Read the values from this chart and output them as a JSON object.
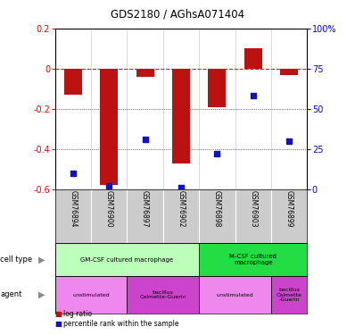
{
  "title": "GDS2180 / AGhsA071404",
  "samples": [
    "GSM76894",
    "GSM76900",
    "GSM76897",
    "GSM76902",
    "GSM76898",
    "GSM76903",
    "GSM76899"
  ],
  "log_ratio": [
    -0.13,
    -0.58,
    -0.04,
    -0.47,
    -0.19,
    0.1,
    -0.03
  ],
  "percentile": [
    10,
    2,
    31,
    1,
    22,
    58,
    30
  ],
  "ylim_left": [
    -0.6,
    0.2
  ],
  "ylim_right": [
    0,
    100
  ],
  "bar_color": "#bb1111",
  "dot_color": "#1111cc",
  "dashed_color": "#cc2222",
  "cell_type_groups": [
    {
      "label": "GM-CSF cultured macrophage",
      "start": 0,
      "end": 4,
      "color": "#bbffbb"
    },
    {
      "label": "M-CSF cultured\nmacrophage",
      "start": 4,
      "end": 7,
      "color": "#22dd44"
    }
  ],
  "agent_groups": [
    {
      "label": "unstimulated",
      "start": 0,
      "end": 2,
      "color": "#ee88ee"
    },
    {
      "label": "bacillus\nCalmette-Guerin",
      "start": 2,
      "end": 4,
      "color": "#cc44cc"
    },
    {
      "label": "unstimulated",
      "start": 4,
      "end": 6,
      "color": "#ee88ee"
    },
    {
      "label": "bacillus\nCalmette\n-Guerin",
      "start": 6,
      "end": 7,
      "color": "#cc44cc"
    }
  ],
  "legend_items": [
    {
      "label": "log ratio",
      "color": "#bb1111"
    },
    {
      "label": "percentile rank within the sample",
      "color": "#1111cc"
    }
  ],
  "left_yticks": [
    -0.6,
    -0.4,
    -0.2,
    0,
    0.2
  ],
  "left_yticklabels": [
    "-0.6",
    "-0.4",
    "-0.2",
    "0",
    "0.2"
  ],
  "right_yticks": [
    0,
    25,
    50,
    75,
    100
  ],
  "right_yticklabels": [
    "0",
    "25",
    "50",
    "75",
    "100%"
  ]
}
